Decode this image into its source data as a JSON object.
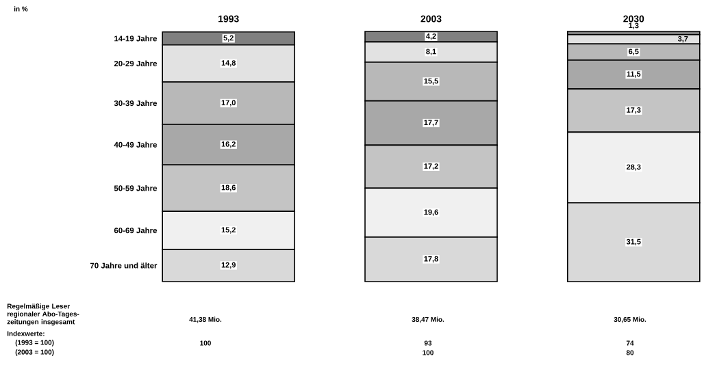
{
  "chart_data": {
    "type": "bar",
    "stacked": true,
    "categories": [
      "1993",
      "2003",
      "2030"
    ],
    "series": [
      {
        "name": "70 Jahre und älter",
        "color": "#d9d9d9",
        "values": [
          12.9,
          17.8,
          31.5
        ],
        "value_labels": [
          "12,9",
          "17,8",
          "31,5"
        ]
      },
      {
        "name": "60-69 Jahre",
        "color": "#f0f0f0",
        "values": [
          15.2,
          19.6,
          28.3
        ],
        "value_labels": [
          "15,2",
          "19,6",
          "28,3"
        ]
      },
      {
        "name": "50-59 Jahre",
        "color": "#c4c4c4",
        "values": [
          18.6,
          17.2,
          17.3
        ],
        "value_labels": [
          "18,6",
          "17,2",
          "17,3"
        ]
      },
      {
        "name": "40-49 Jahre",
        "color": "#a8a8a8",
        "values": [
          16.2,
          17.7,
          11.5
        ],
        "value_labels": [
          "16,2",
          "17,7",
          "11,5"
        ]
      },
      {
        "name": "30-39 Jahre",
        "color": "#b8b8b8",
        "values": [
          17.0,
          15.5,
          6.5
        ],
        "value_labels": [
          "17,0",
          "15,5",
          "6,5"
        ]
      },
      {
        "name": "20-29 Jahre",
        "color": "#e2e2e2",
        "values": [
          14.8,
          8.1,
          3.7
        ],
        "value_labels": [
          "14,8",
          "8,1",
          "3,7"
        ]
      },
      {
        "name": "14-19 Jahre",
        "color": "#808080",
        "values": [
          5.2,
          4.2,
          1.3
        ],
        "value_labels": [
          "5,2",
          "4,2",
          "1,3"
        ]
      }
    ],
    "annotations": [
      "Regelmäßige Leser regionaler Abo-Tages-zeitungen insgesamt",
      "41,38 Mio.",
      "38,47 Mio.",
      "30,65 Mio.",
      "Indexwerte:",
      "(1993 = 100)",
      "100",
      "93",
      "74",
      "(2003 = 100)",
      "100",
      "80",
      "in %"
    ]
  }
}
